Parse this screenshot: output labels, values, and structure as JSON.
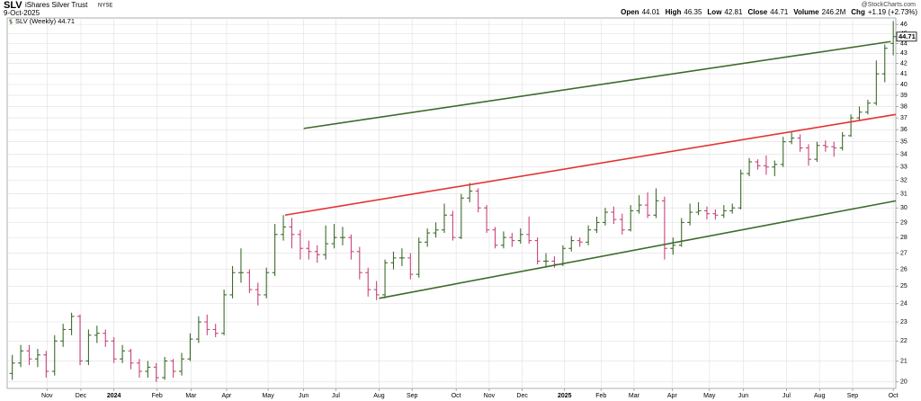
{
  "header": {
    "symbol": "SLV",
    "name": "iShares Silver Trust",
    "exchange": "NYSE",
    "date": "9-Oct-2025",
    "source": "@StockCharts.com",
    "quote": [
      {
        "label": "Open",
        "value": "44.01"
      },
      {
        "label": "High",
        "value": "46.35"
      },
      {
        "label": "Low",
        "value": "42.81"
      },
      {
        "label": "Close",
        "value": "44.71"
      },
      {
        "label": "Volume",
        "value": "246.2M"
      },
      {
        "label": "Chg",
        "value": "+1.19 (+2.73%)"
      }
    ]
  },
  "chart_data": {
    "type": "ohlc",
    "legend": "SLV (Weekly) 44.71",
    "log_scale": true,
    "grid": true,
    "x": [
      0,
      1,
      2,
      3,
      4,
      5,
      6,
      7,
      8,
      9,
      10,
      11,
      12,
      13,
      14,
      15,
      16,
      17,
      18,
      19,
      20,
      21,
      22,
      23,
      24,
      25,
      26,
      27,
      28,
      29,
      30,
      31,
      32,
      33,
      34,
      35,
      36,
      37,
      38,
      39,
      40,
      41,
      42,
      43,
      44,
      45,
      46,
      47,
      48,
      49,
      50,
      51,
      52,
      53,
      54,
      55,
      56,
      57,
      58,
      59,
      60,
      61,
      62,
      63,
      64,
      65,
      66,
      67,
      68,
      69,
      70,
      71,
      72,
      73,
      74,
      75,
      76,
      77,
      78,
      79,
      80,
      81,
      82,
      83,
      84,
      85,
      86,
      87,
      88,
      89,
      90,
      91,
      92,
      93,
      94,
      95,
      96,
      97,
      98,
      99,
      100,
      101,
      102,
      103,
      104
    ],
    "xlim": [
      -0.6,
      104.3
    ],
    "xticks": [
      {
        "value": 4.1,
        "label": "Nov"
      },
      {
        "value": 8.1,
        "label": "Dec"
      },
      {
        "value": 12.0,
        "label": "2024"
      },
      {
        "value": 17.1,
        "label": "Feb"
      },
      {
        "value": 21.1,
        "label": "Mar"
      },
      {
        "value": 25.3,
        "label": "Apr"
      },
      {
        "value": 30.2,
        "label": "May"
      },
      {
        "value": 34.4,
        "label": "Jun"
      },
      {
        "value": 38.2,
        "label": "Jul"
      },
      {
        "value": 43.3,
        "label": "Aug"
      },
      {
        "value": 47.2,
        "label": "Sep"
      },
      {
        "value": 52.4,
        "label": "Oct"
      },
      {
        "value": 56.3,
        "label": "Nov"
      },
      {
        "value": 60.2,
        "label": "Dec"
      },
      {
        "value": 65.2,
        "label": "2025"
      },
      {
        "value": 69.5,
        "label": "Feb"
      },
      {
        "value": 73.4,
        "label": "Mar"
      },
      {
        "value": 77.9,
        "label": "Apr"
      },
      {
        "value": 82.3,
        "label": "May"
      },
      {
        "value": 86.3,
        "label": "Jun"
      },
      {
        "value": 91.4,
        "label": "Jul"
      },
      {
        "value": 95.3,
        "label": "Aug"
      },
      {
        "value": 99.2,
        "label": "Sep"
      },
      {
        "value": 104.0,
        "label": "Oct"
      }
    ],
    "ylim": [
      19.7,
      46.7
    ],
    "yticks": [
      20,
      21,
      22,
      23,
      24,
      25,
      26,
      27,
      28,
      29,
      30,
      31,
      32,
      33,
      34,
      35,
      36,
      37,
      38,
      39,
      40,
      41,
      42,
      43,
      44,
      45,
      46
    ],
    "series": [
      {
        "name": "SLV",
        "up_color": "#3d6b2c",
        "down_color": "#c8457a",
        "open": [
          20.4,
          20.9,
          21.5,
          21.1,
          21.3,
          20.5,
          22.0,
          22.6,
          23.3,
          21.0,
          22.3,
          22.4,
          22.0,
          21.1,
          21.5,
          20.9,
          20.5,
          20.7,
          20.2,
          21.0,
          20.5,
          21.1,
          22.1,
          23.0,
          22.6,
          22.4,
          24.5,
          25.8,
          25.8,
          24.8,
          24.5,
          25.8,
          28.2,
          28.7,
          28.2,
          27.3,
          27.1,
          26.9,
          27.6,
          28.0,
          28.0,
          27.1,
          25.8,
          24.8,
          24.5,
          26.4,
          26.7,
          26.7,
          25.7,
          27.7,
          28.3,
          28.5,
          29.5,
          28.0,
          30.7,
          31.2,
          30.0,
          28.5,
          27.5,
          28.0,
          27.8,
          28.2,
          27.8,
          26.5,
          26.5,
          26.3,
          27.3,
          27.8,
          27.7,
          28.5,
          29.0,
          29.7,
          29.2,
          28.5,
          29.8,
          30.2,
          29.5,
          30.5,
          27.3,
          27.5,
          29.0,
          29.7,
          29.8,
          29.6,
          29.5,
          29.8,
          30.0,
          32.5,
          33.4,
          33.1,
          33.0,
          33.2,
          35.0,
          35.3,
          34.5,
          33.6,
          34.7,
          34.6,
          34.5,
          35.5,
          37.0,
          37.5,
          38.3,
          41.0,
          44.01
        ],
        "high": [
          21.3,
          21.8,
          21.8,
          21.6,
          21.5,
          22.3,
          22.9,
          23.5,
          23.4,
          22.6,
          22.8,
          22.6,
          22.2,
          21.8,
          21.6,
          21.1,
          21.0,
          20.9,
          21.2,
          21.1,
          21.4,
          22.4,
          23.3,
          23.4,
          22.9,
          24.8,
          26.2,
          27.3,
          26.0,
          25.2,
          26.1,
          28.9,
          29.5,
          29.3,
          28.5,
          27.8,
          27.5,
          28.8,
          28.9,
          28.7,
          28.2,
          27.4,
          26.1,
          25.3,
          26.6,
          27.1,
          27.3,
          27.0,
          28.0,
          28.6,
          29.0,
          30.3,
          29.8,
          31.0,
          31.8,
          31.4,
          30.2,
          28.7,
          28.4,
          28.3,
          28.6,
          29.4,
          28.0,
          27.0,
          26.8,
          27.5,
          28.1,
          28.0,
          28.8,
          29.4,
          30.0,
          30.1,
          29.6,
          30.2,
          30.9,
          31.1,
          31.4,
          30.8,
          28.0,
          29.3,
          30.3,
          30.4,
          30.1,
          29.9,
          30.2,
          30.3,
          32.8,
          33.7,
          33.6,
          33.9,
          33.5,
          35.4,
          35.8,
          35.6,
          34.8,
          35.0,
          35.1,
          35.0,
          35.8,
          37.3,
          38.0,
          38.6,
          42.3,
          43.9,
          46.35
        ],
        "low": [
          20.1,
          20.7,
          20.8,
          20.7,
          20.2,
          20.3,
          21.7,
          22.3,
          20.8,
          20.8,
          21.9,
          21.7,
          20.9,
          20.9,
          20.6,
          20.2,
          20.2,
          20.0,
          20.1,
          20.2,
          20.3,
          21.0,
          21.9,
          22.3,
          22.2,
          22.3,
          24.3,
          25.2,
          24.6,
          23.9,
          24.3,
          25.6,
          27.8,
          27.3,
          26.6,
          26.6,
          26.4,
          26.6,
          27.3,
          27.5,
          26.6,
          25.4,
          24.4,
          24.2,
          24.3,
          26.0,
          26.2,
          25.4,
          25.5,
          27.4,
          28.0,
          28.3,
          27.8,
          27.9,
          30.4,
          29.7,
          28.3,
          27.3,
          27.3,
          27.4,
          27.6,
          27.6,
          26.3,
          26.1,
          26.1,
          26.2,
          27.1,
          27.4,
          27.5,
          28.3,
          28.8,
          28.9,
          28.2,
          28.4,
          29.6,
          29.3,
          29.3,
          26.6,
          26.9,
          27.4,
          28.8,
          29.5,
          29.2,
          29.2,
          29.3,
          29.6,
          29.9,
          32.3,
          32.8,
          32.4,
          32.3,
          33.0,
          34.8,
          34.2,
          33.1,
          33.4,
          34.2,
          33.8,
          34.3,
          35.4,
          36.8,
          37.3,
          38.1,
          40.2,
          42.81
        ],
        "close": [
          20.9,
          21.5,
          21.1,
          21.3,
          20.5,
          22.0,
          22.6,
          23.3,
          21.0,
          22.3,
          22.4,
          22.0,
          21.1,
          21.5,
          20.9,
          20.5,
          20.7,
          20.2,
          21.0,
          20.5,
          21.1,
          22.1,
          23.0,
          22.6,
          22.4,
          24.5,
          25.8,
          25.8,
          24.8,
          24.5,
          25.8,
          28.2,
          28.7,
          28.2,
          27.3,
          27.1,
          26.9,
          27.6,
          28.0,
          28.0,
          27.1,
          25.8,
          24.8,
          24.5,
          26.4,
          26.7,
          26.7,
          25.7,
          27.7,
          28.3,
          28.5,
          29.5,
          28.0,
          30.7,
          31.2,
          30.0,
          28.5,
          27.5,
          28.0,
          27.8,
          28.2,
          27.8,
          26.5,
          26.5,
          26.3,
          27.3,
          27.8,
          27.7,
          28.5,
          29.0,
          29.7,
          29.2,
          28.5,
          29.8,
          30.2,
          29.5,
          30.5,
          27.3,
          27.5,
          29.0,
          29.7,
          29.8,
          29.6,
          29.5,
          29.8,
          30.0,
          32.5,
          33.4,
          33.1,
          33.0,
          33.2,
          35.0,
          35.3,
          34.5,
          33.6,
          34.7,
          34.6,
          34.5,
          35.5,
          37.0,
          37.5,
          38.3,
          41.0,
          43.52,
          44.71
        ]
      }
    ],
    "trendlines": [
      {
        "color": "#3d6b2c",
        "x": [
          34.4,
          103.7
        ],
        "y": [
          36.1,
          44.2
        ]
      },
      {
        "color": "#e53333",
        "x": [
          32.2,
          104.3
        ],
        "y": [
          29.5,
          37.3
        ]
      },
      {
        "color": "#3d6b2c",
        "x": [
          43.3,
          104.3
        ],
        "y": [
          24.3,
          30.5
        ]
      }
    ]
  }
}
